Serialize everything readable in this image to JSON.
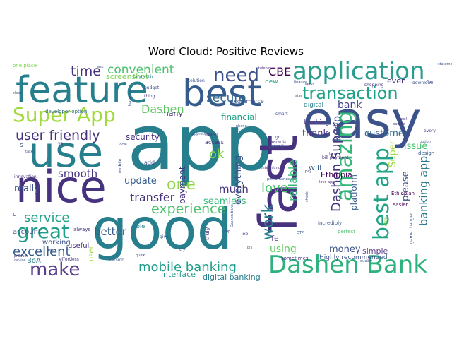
{
  "title": "Word Cloud: Positive Reviews",
  "palette": [
    "#440154",
    "#46327e",
    "#365c8d",
    "#277f8e",
    "#1fa187",
    "#4ac16d",
    "#a0da39",
    "#fde725"
  ],
  "words": [
    {
      "text": "app",
      "color": "#277f8e"
    },
    {
      "text": "good",
      "color": "#277f8e"
    },
    {
      "text": "best",
      "color": "#365c8d"
    },
    {
      "text": "easy",
      "color": "#3b528b"
    },
    {
      "text": "nice",
      "color": "#46327e"
    },
    {
      "text": "fast",
      "color": "#46327e"
    },
    {
      "text": "feature",
      "color": "#277f8e"
    },
    {
      "text": "use",
      "color": "#277f8e"
    },
    {
      "text": "application",
      "color": "#2a9d8f"
    },
    {
      "text": "Dashen Bank",
      "color": "#2db27d"
    },
    {
      "text": "amazing",
      "color": "#35b779"
    },
    {
      "text": "Super App",
      "color": "#a0da39"
    },
    {
      "text": "transaction",
      "color": "#1fa187"
    },
    {
      "text": "great",
      "color": "#1f9e89"
    },
    {
      "text": "make",
      "color": "#5b3f8e"
    },
    {
      "text": "best app",
      "color": "#20a386"
    },
    {
      "text": "need",
      "color": "#3b528b"
    },
    {
      "text": "user friendly",
      "color": "#46327e"
    },
    {
      "text": "experience",
      "color": "#4ac16d"
    },
    {
      "text": "one",
      "color": "#8fd744"
    },
    {
      "text": "excellent",
      "color": "#365c8d"
    },
    {
      "text": "mobile banking",
      "color": "#1f9e89"
    },
    {
      "text": "work",
      "color": "#277f8e"
    },
    {
      "text": "Dashen Super",
      "color": "#46327e"
    },
    {
      "text": "time",
      "color": "#46327e"
    },
    {
      "text": "convenient",
      "color": "#4ac16d"
    },
    {
      "text": "service",
      "color": "#1fa187"
    },
    {
      "text": "love",
      "color": "#4ac16d"
    },
    {
      "text": "reliable",
      "color": "#35b779"
    },
    {
      "text": "banking app",
      "color": "#2a788e"
    },
    {
      "text": "secure",
      "color": "#31688e"
    },
    {
      "text": "CBE",
      "color": "#440154"
    },
    {
      "text": "keep",
      "color": "#3b528b"
    },
    {
      "text": "smooth",
      "color": "#46327e"
    },
    {
      "text": "ok",
      "color": "#7ad151"
    },
    {
      "text": "transfer",
      "color": "#46327e"
    },
    {
      "text": "much",
      "color": "#46327e"
    },
    {
      "text": "better",
      "color": "#365c8d"
    },
    {
      "text": "seamless",
      "color": "#35b779"
    },
    {
      "text": "everything",
      "color": "#3b528b"
    },
    {
      "text": "really",
      "color": "#3b528b"
    },
    {
      "text": "thank",
      "color": "#46327e"
    },
    {
      "text": "customer",
      "color": "#31688e"
    },
    {
      "text": "issue",
      "color": "#4ac16d"
    },
    {
      "text": "using",
      "color": "#5ec962"
    },
    {
      "text": "money",
      "color": "#3b528b"
    },
    {
      "text": "Dashen",
      "color": "#5ec962"
    },
    {
      "text": "screenshot",
      "color": "#7ad151"
    },
    {
      "text": "update",
      "color": "#365c8d"
    },
    {
      "text": "financial",
      "color": "#1fa187"
    },
    {
      "text": "payment",
      "color": "#46327e"
    },
    {
      "text": "security",
      "color": "#46327e"
    },
    {
      "text": "interface",
      "color": "#1f9e89"
    },
    {
      "text": "digital banking",
      "color": "#277f8e"
    },
    {
      "text": "Ethiopia",
      "color": "#440154"
    },
    {
      "text": "bank",
      "color": "#414487"
    },
    {
      "text": "platform",
      "color": "#365c8d"
    },
    {
      "text": "please",
      "color": "#3b528b"
    },
    {
      "text": "Super",
      "color": "#a0da39"
    },
    {
      "text": "simple",
      "color": "#5b3f8e"
    },
    {
      "text": "life",
      "color": "#5b3f8e"
    },
    {
      "text": "will",
      "color": "#365c8d"
    },
    {
      "text": "many",
      "color": "#46327e"
    },
    {
      "text": "account",
      "color": "#3b528b"
    },
    {
      "text": "BoA",
      "color": "#277f8e"
    },
    {
      "text": "working",
      "color": "#3b528b"
    },
    {
      "text": "useful",
      "color": "#46327e"
    },
    {
      "text": "even",
      "color": "#46327e"
    },
    {
      "text": "Highly recommended",
      "color": "#3b528b"
    },
    {
      "text": "developer option",
      "color": "#31688e"
    },
    {
      "text": "fantastic",
      "color": "#277f8e"
    },
    {
      "text": "easier",
      "color": "#440154"
    },
    {
      "text": "design",
      "color": "#365c8d"
    },
    {
      "text": "e commerce",
      "color": "#3b528b"
    },
    {
      "text": "access",
      "color": "#46327e"
    },
    {
      "text": "digital",
      "color": "#277f8e"
    },
    {
      "text": "banking",
      "color": "#5b3f8e"
    },
    {
      "text": "new",
      "color": "#1fa187"
    },
    {
      "text": "one place",
      "color": "#7ad151"
    },
    {
      "text": "add",
      "color": "#3b528b"
    },
    {
      "text": "able",
      "color": "#277f8e"
    },
    {
      "text": "always",
      "color": "#46327e"
    },
    {
      "text": "overall",
      "color": "#3b528b"
    },
    {
      "text": "sometimes",
      "color": "#46327e"
    },
    {
      "text": "perfect",
      "color": "#4ac16d"
    },
    {
      "text": "incredibly",
      "color": "#3b528b"
    },
    {
      "text": "Ethiopian",
      "color": "#440154"
    },
    {
      "text": "download",
      "color": "#3b528b"
    },
    {
      "text": "shopping",
      "color": "#46327e"
    },
    {
      "text": "budget",
      "color": "#3b528b"
    },
    {
      "text": "effortless",
      "color": "#46327e"
    },
    {
      "text": "solution",
      "color": "#3b528b"
    },
    {
      "text": "bill payment",
      "color": "#46327e"
    },
    {
      "text": "smart",
      "color": "#3b528b"
    },
    {
      "text": "innovation",
      "color": "#46327e"
    },
    {
      "text": "job",
      "color": "#46327e"
    },
    {
      "text": "give",
      "color": "#3b528b"
    },
    {
      "text": "try",
      "color": "#3b528b"
    },
    {
      "text": "version",
      "color": "#3b528b"
    },
    {
      "text": "truly",
      "color": "#46327e"
    },
    {
      "text": "step",
      "color": "#7ad151"
    },
    {
      "text": "game changer",
      "color": "#3b528b"
    },
    {
      "text": "thing",
      "color": "#46327e"
    },
    {
      "text": "balance",
      "color": "#3b528b"
    },
    {
      "text": "mobile",
      "color": "#3b528b"
    },
    {
      "text": "local",
      "color": "#3b528b"
    },
    {
      "text": "interesting",
      "color": "#46327e"
    },
    {
      "text": "performance",
      "color": "#3b528b"
    },
    {
      "text": "telebirr",
      "color": "#46327e"
    },
    {
      "text": "finance",
      "color": "#3b528b"
    },
    {
      "text": "every",
      "color": "#46327e"
    },
    {
      "text": "option",
      "color": "#3b528b"
    },
    {
      "text": "Dashen bank",
      "color": "#3b528b"
    },
    {
      "text": "user",
      "color": "#a0da39"
    },
    {
      "text": "tasks",
      "color": "#3b528b"
    },
    {
      "text": "crashes",
      "color": "#46327e"
    },
    {
      "text": "well",
      "color": "#46327e"
    },
    {
      "text": "appreciate",
      "color": "#3b528b"
    },
    {
      "text": "ve",
      "color": "#46327e"
    },
    {
      "text": "s",
      "color": "#3b528b"
    },
    {
      "text": "u",
      "color": "#3b528b"
    },
    {
      "text": "go",
      "color": "#3b528b"
    },
    {
      "text": "ask",
      "color": "#3b528b"
    },
    {
      "text": "clean",
      "color": "#3b528b"
    },
    {
      "text": "pay",
      "color": "#46327e"
    },
    {
      "text": "turn",
      "color": "#46327e"
    },
    {
      "text": "check",
      "color": "#3b528b"
    },
    {
      "text": "fix",
      "color": "#3b528b"
    },
    {
      "text": "first",
      "color": "#3b528b"
    },
    {
      "text": "quick",
      "color": "#3b528b"
    },
    {
      "text": "product",
      "color": "#46327e"
    },
    {
      "text": "quality",
      "color": "#3b528b"
    },
    {
      "text": "payments",
      "color": "#46327e"
    },
    {
      "text": "phone",
      "color": "#3b528b"
    },
    {
      "text": "packed",
      "color": "#46327e"
    },
    {
      "text": "device",
      "color": "#3b528b"
    },
    {
      "text": "top",
      "color": "#46327e"
    },
    {
      "text": "bill",
      "color": "#3b528b"
    },
    {
      "text": "UI",
      "color": "#46327e"
    },
    {
      "text": "OTP",
      "color": "#3b528b"
    },
    {
      "text": "happy",
      "color": "#46327e"
    },
    {
      "text": "star",
      "color": "#3b528b"
    },
    {
      "text": "love app",
      "color": "#46327e"
    },
    {
      "text": "statement",
      "color": "#3b528b"
    }
  ]
}
